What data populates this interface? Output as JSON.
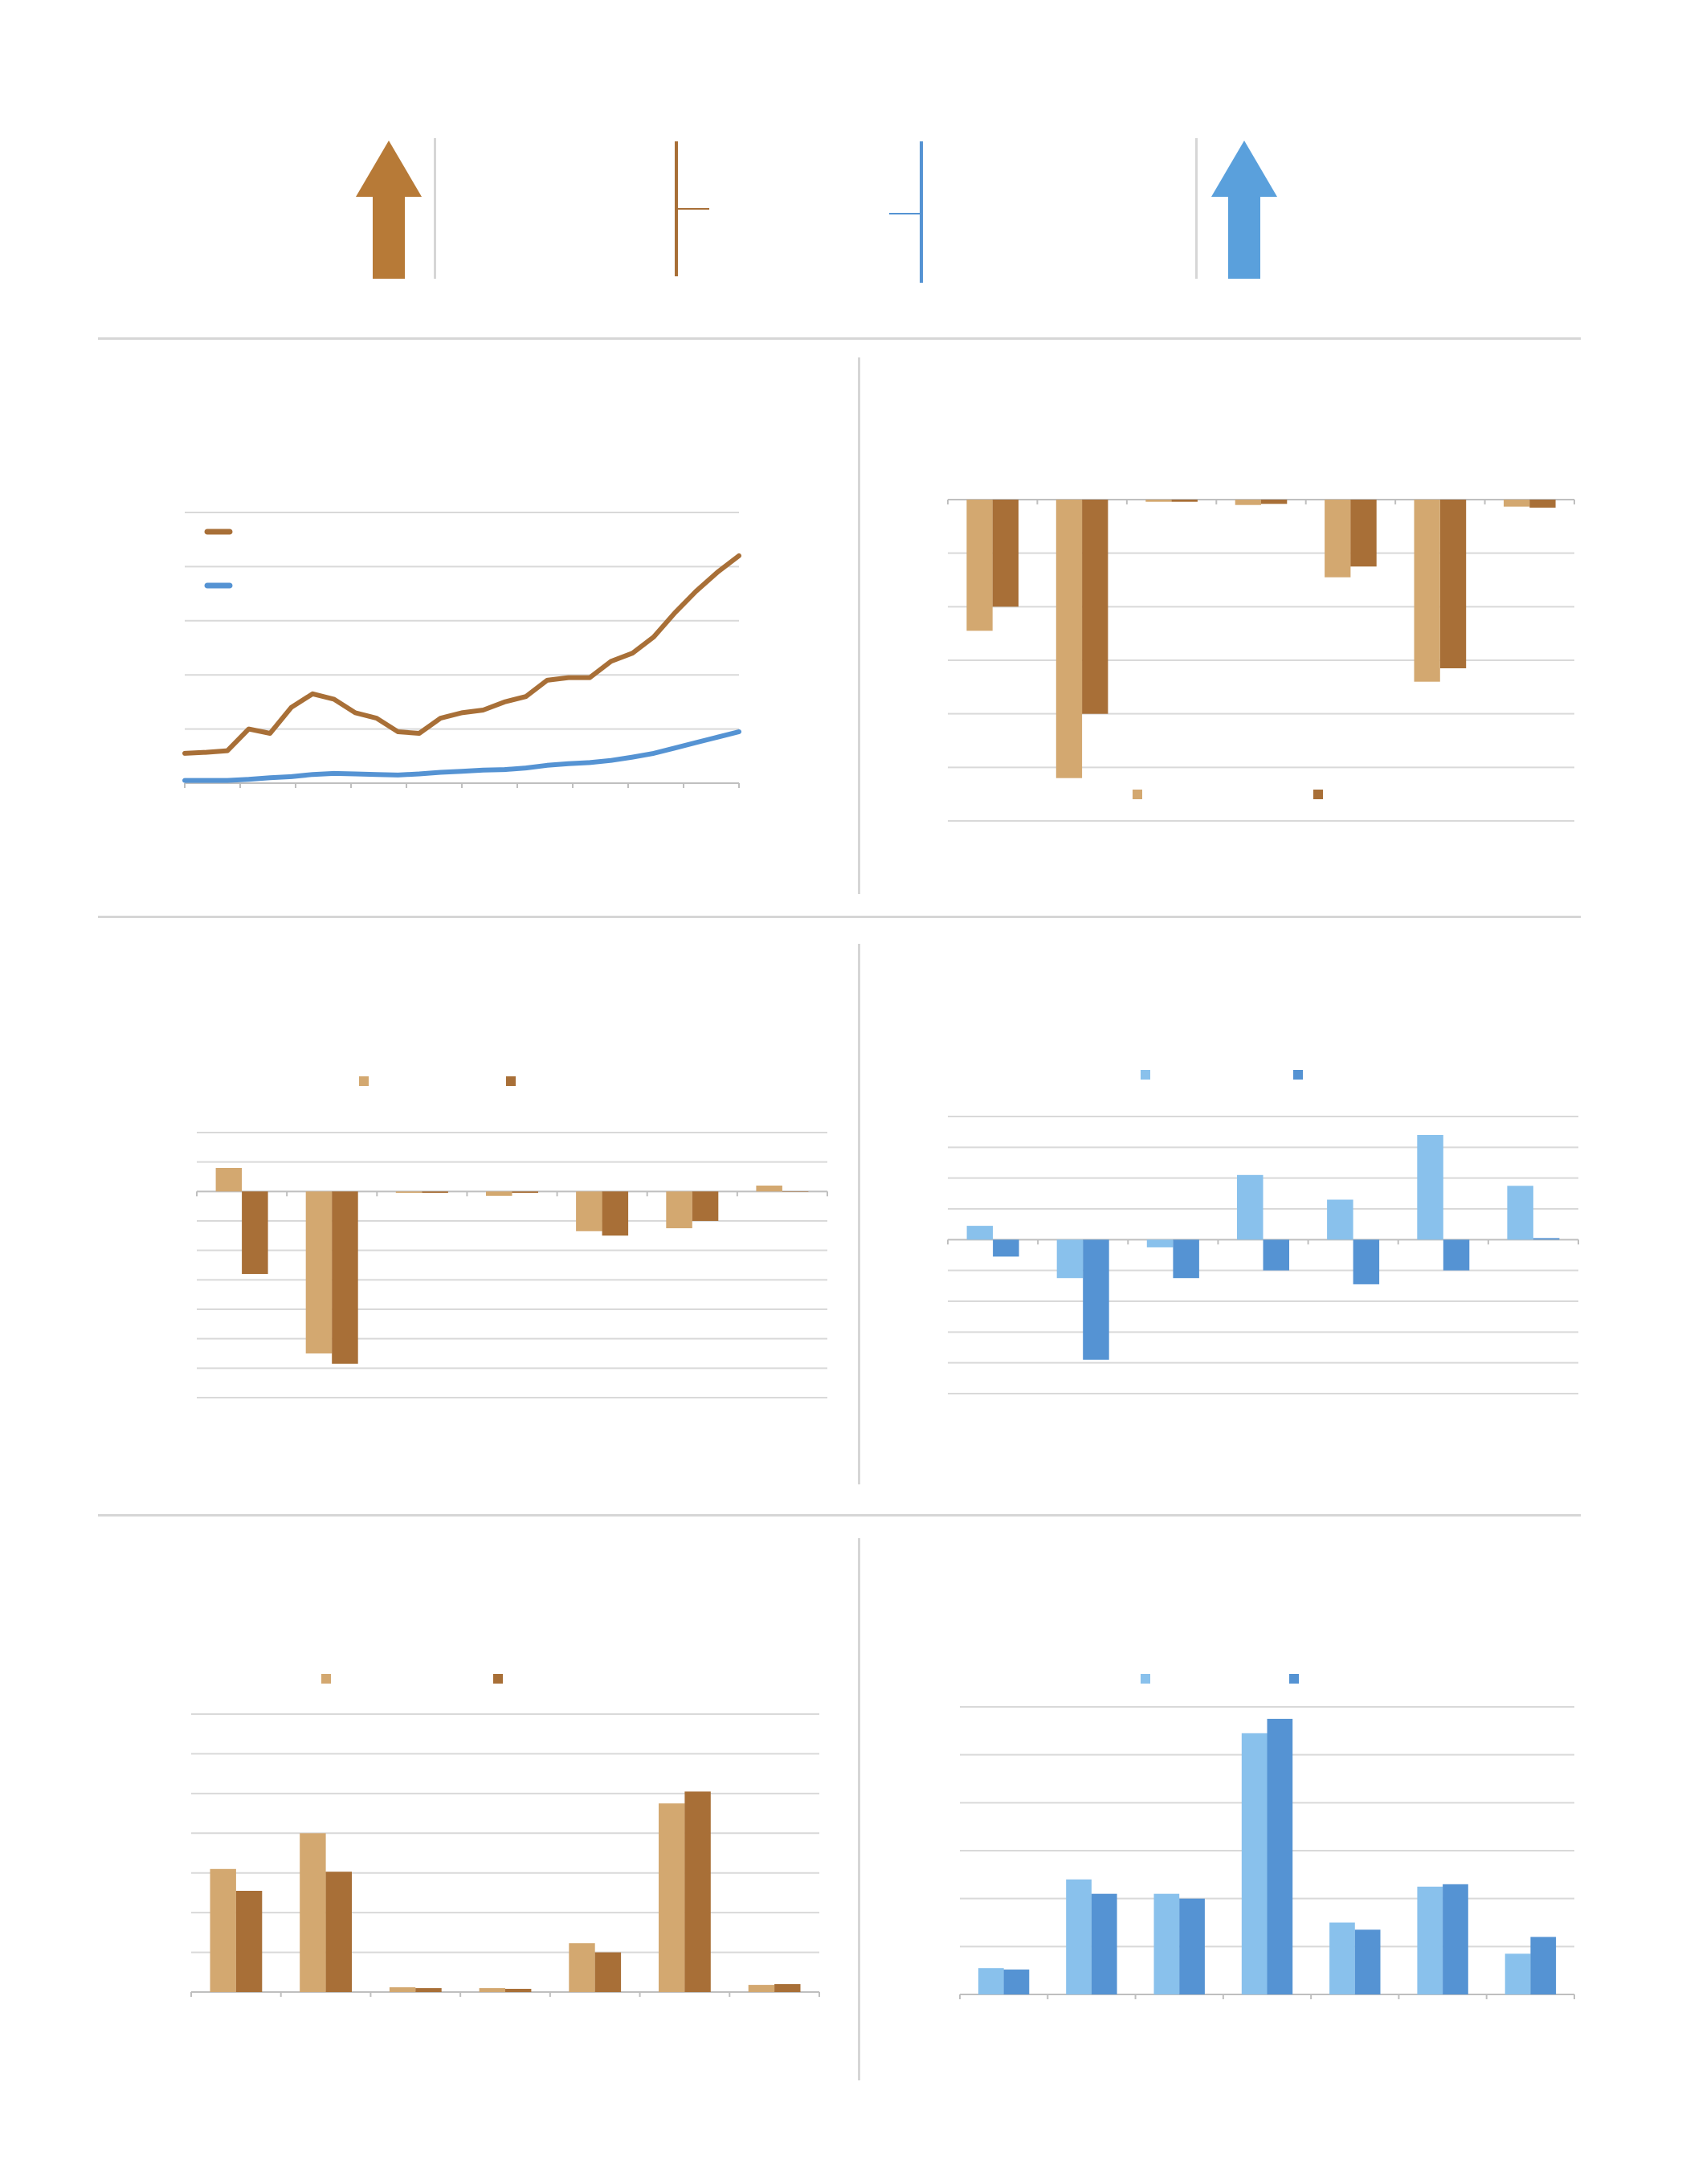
{
  "colors": {
    "brown_dark": "#a86f37",
    "brown_light": "#d3a870",
    "blue_dark": "#5593d3",
    "blue_light": "#89c1ec",
    "grid": "#d9d9d9",
    "axis": "#bfbfbf",
    "divider": "#d6d6d6"
  },
  "header": {
    "icons": [
      "arrow-up-icon",
      "scale-indicator-icon",
      "scale-indicator-icon",
      "arrow-up-icon"
    ]
  },
  "chart_data": [
    {
      "id": "line",
      "type": "line",
      "x_count": 10,
      "ylim": [
        0,
        5
      ],
      "grid": true,
      "legend": "top-left",
      "series": [
        {
          "color": "#a86f37",
          "values": [
            0.55,
            0.57,
            0.6,
            1.0,
            0.92,
            1.4,
            1.65,
            1.55,
            1.3,
            1.2,
            0.95,
            0.92,
            1.2,
            1.3,
            1.35,
            1.5,
            1.6,
            1.9,
            1.95,
            1.95,
            2.25,
            2.4,
            2.7,
            3.15,
            3.55,
            3.9,
            4.2
          ]
        },
        {
          "color": "#5593d3",
          "values": [
            0.05,
            0.05,
            0.05,
            0.07,
            0.1,
            0.12,
            0.16,
            0.18,
            0.17,
            0.16,
            0.15,
            0.17,
            0.2,
            0.22,
            0.24,
            0.25,
            0.28,
            0.33,
            0.36,
            0.38,
            0.42,
            0.48,
            0.55,
            0.65,
            0.75,
            0.85,
            0.95
          ]
        }
      ]
    },
    {
      "id": "bar-top-right",
      "type": "bar",
      "categories_count": 7,
      "ylim": [
        -60,
        0
      ],
      "grid": true,
      "legend": "bottom",
      "series": [
        {
          "color": "#d3a870",
          "values": [
            -24.5,
            -52,
            -0.4,
            -1,
            -14.5,
            -34,
            -1.3
          ]
        },
        {
          "color": "#a86f37",
          "values": [
            -20,
            -40,
            -0.4,
            -0.8,
            -12.5,
            -31.5,
            -1.5
          ]
        }
      ]
    },
    {
      "id": "bar-mid-left",
      "type": "bar",
      "categories_count": 7,
      "ylim": [
        -70,
        20
      ],
      "grid": true,
      "legend": "top",
      "series": [
        {
          "color": "#d3a870",
          "values": [
            8,
            -55,
            -0.5,
            -1.5,
            -13.5,
            -12.5,
            2
          ]
        },
        {
          "color": "#a86f37",
          "values": [
            -28,
            -58.5,
            -0.5,
            -0.5,
            -15,
            -10,
            0
          ]
        }
      ]
    },
    {
      "id": "bar-mid-right",
      "type": "bar",
      "categories_count": 7,
      "ylim": [
        -50,
        40
      ],
      "grid": true,
      "legend": "top",
      "series": [
        {
          "color": "#89c1ec",
          "values": [
            4.5,
            -12.5,
            -2.5,
            21,
            13,
            34,
            17.5
          ]
        },
        {
          "color": "#5593d3",
          "values": [
            -5.5,
            -39,
            -12.5,
            -10,
            -14.5,
            -10,
            0.5
          ]
        }
      ]
    },
    {
      "id": "bar-bottom-left",
      "type": "bar",
      "categories_count": 7,
      "ylim": [
        0,
        70
      ],
      "grid": true,
      "legend": "top",
      "series": [
        {
          "color": "#d3a870",
          "values": [
            31,
            40,
            1.2,
            1,
            12.3,
            47.5,
            1.8
          ]
        },
        {
          "color": "#a86f37",
          "values": [
            25.5,
            30.3,
            1,
            0.8,
            10,
            50.5,
            2
          ]
        }
      ]
    },
    {
      "id": "bar-bottom-right",
      "type": "bar",
      "categories_count": 7,
      "ylim": [
        0,
        60
      ],
      "grid": true,
      "legend": "top",
      "series": [
        {
          "color": "#89c1ec",
          "values": [
            5.5,
            24,
            21,
            54.5,
            15,
            22.5,
            8.5
          ]
        },
        {
          "color": "#5593d3",
          "values": [
            5.2,
            21,
            20,
            57.5,
            13.5,
            23,
            12
          ]
        }
      ]
    }
  ]
}
